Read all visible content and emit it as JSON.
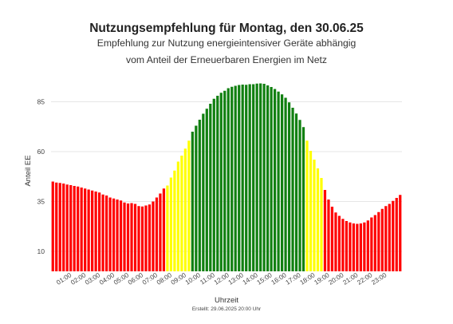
{
  "chart_data": {
    "type": "bar",
    "title": "Nutzungsempfehlung für Montag, den 30.06.25",
    "subtitle_line1": "Empfehlung zur Nutzung energieintensiver Geräte abhängig",
    "subtitle_line2": "vom Anteil der Erneuerbaren Energien im Netz",
    "xlabel": "Uhrzeit",
    "ylabel": "Anteil EE",
    "footer": "Erstellt: 29.06.2025 20:00 Uhr",
    "ylim": [
      0,
      96
    ],
    "yticks": [
      10,
      35,
      60,
      85
    ],
    "xtick_labels": [
      "01:00",
      "02:00",
      "03:00",
      "04:00",
      "05:00",
      "06:00",
      "07:00",
      "08:00",
      "09:00",
      "10:00",
      "11:00",
      "12:00",
      "13:00",
      "14:00",
      "15:00",
      "16:00",
      "17:00",
      "18:00",
      "19:00",
      "20:00",
      "21:00",
      "22:00",
      "23:00"
    ],
    "grid": true,
    "colors": {
      "red": "#ff0000",
      "yellow": "#ffff00",
      "green": "#118011"
    },
    "interval_minutes": 15,
    "values": [
      45,
      44.5,
      44.3,
      44,
      43.5,
      43.2,
      42.8,
      42.5,
      42,
      41.5,
      41,
      40.5,
      40,
      39.5,
      38.5,
      38,
      37,
      36.5,
      36,
      35.5,
      34.5,
      34,
      34.2,
      33.8,
      32.7,
      32.5,
      33,
      33.5,
      35,
      37,
      39,
      41.5,
      43,
      47,
      50.5,
      55,
      58,
      61.5,
      65.5,
      70,
      73,
      76,
      79,
      81.5,
      84,
      86.5,
      88,
      89.5,
      90.5,
      91.8,
      92.5,
      93,
      93.4,
      93.6,
      93.5,
      93.8,
      93.8,
      94.1,
      94.2,
      94,
      93.2,
      92.4,
      91.4,
      90.1,
      88.7,
      87,
      84.7,
      82,
      79.1,
      75.9,
      72.3,
      65.5,
      60.4,
      56,
      51.6,
      46.8,
      40.8,
      36,
      32.4,
      29.5,
      27.8,
      26.3,
      25.2,
      24.5,
      24,
      23.8,
      24,
      24.5,
      25.5,
      27,
      28.2,
      29.7,
      31.3,
      32.7,
      33.8,
      35.3,
      36.8,
      38.3
    ],
    "bar_colors": [
      "red",
      "red",
      "red",
      "red",
      "red",
      "red",
      "red",
      "red",
      "red",
      "red",
      "red",
      "red",
      "red",
      "red",
      "red",
      "red",
      "red",
      "red",
      "red",
      "red",
      "red",
      "red",
      "red",
      "red",
      "red",
      "red",
      "red",
      "red",
      "red",
      "red",
      "red",
      "red",
      "yellow",
      "yellow",
      "yellow",
      "yellow",
      "yellow",
      "yellow",
      "yellow",
      "green",
      "green",
      "green",
      "green",
      "green",
      "green",
      "green",
      "green",
      "green",
      "green",
      "green",
      "green",
      "green",
      "green",
      "green",
      "green",
      "green",
      "green",
      "green",
      "green",
      "green",
      "green",
      "green",
      "green",
      "green",
      "green",
      "green",
      "green",
      "green",
      "green",
      "green",
      "green",
      "yellow",
      "yellow",
      "yellow",
      "yellow",
      "yellow",
      "red",
      "red",
      "red",
      "red",
      "red",
      "red",
      "red",
      "red",
      "red",
      "red",
      "red",
      "red",
      "red",
      "red",
      "red",
      "red",
      "red",
      "red",
      "red",
      "red",
      "red",
      "red"
    ]
  }
}
